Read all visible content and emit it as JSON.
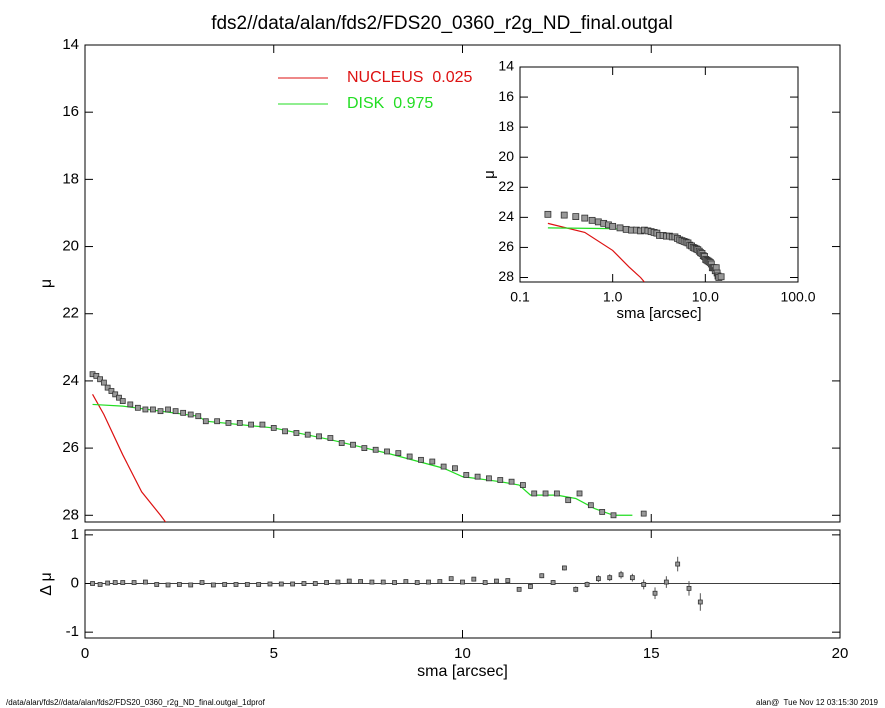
{
  "footer": {
    "left": "/data/alan/fds2//data/alan/fds2/FDS20_0360_r2g_ND_final.outgal_1dprof",
    "right": "alan@  Tue Nov 12 03:15:30 2019"
  },
  "chart_data": [
    {
      "type": "line",
      "title": "fds2//data/alan/fds2/FDS20_0360_r2g_ND_final.outgal",
      "ylabel": "μ",
      "xlim": [
        0,
        20
      ],
      "xticks": [
        0,
        5,
        10,
        15,
        20
      ],
      "ylim": [
        28.2,
        14
      ],
      "yticks": [
        14,
        16,
        18,
        20,
        22,
        24,
        26,
        28
      ],
      "marker_color": "#999999",
      "x": [
        0.2,
        0.3,
        0.4,
        0.5,
        0.6,
        0.7,
        0.8,
        0.9,
        1.0,
        1.2,
        1.4,
        1.6,
        1.8,
        2.0,
        2.2,
        2.4,
        2.6,
        2.8,
        3.0,
        3.2,
        3.5,
        3.8,
        4.1,
        4.4,
        4.7,
        5.0,
        5.3,
        5.6,
        5.9,
        6.2,
        6.5,
        6.8,
        7.1,
        7.4,
        7.7,
        8.0,
        8.3,
        8.6,
        8.9,
        9.2,
        9.5,
        9.8,
        10.1,
        10.4,
        10.7,
        11.0,
        11.3,
        11.6,
        11.9,
        12.2,
        12.5,
        12.8,
        13.1,
        13.4,
        13.7,
        14.0,
        14.8
      ],
      "values": [
        23.8,
        23.85,
        23.95,
        24.05,
        24.2,
        24.3,
        24.4,
        24.5,
        24.6,
        24.7,
        24.8,
        24.85,
        24.85,
        24.9,
        24.85,
        24.9,
        24.95,
        25.0,
        25.05,
        25.2,
        25.2,
        25.25,
        25.25,
        25.3,
        25.3,
        25.4,
        25.5,
        25.55,
        25.6,
        25.65,
        25.7,
        25.85,
        25.9,
        26.0,
        26.05,
        26.1,
        26.15,
        26.25,
        26.35,
        26.4,
        26.55,
        26.6,
        26.8,
        26.85,
        26.9,
        26.95,
        27.0,
        27.1,
        27.35,
        27.35,
        27.35,
        27.55,
        27.35,
        27.7,
        27.9,
        28.0,
        27.95
      ],
      "series": [
        {
          "name": "NUCLEUS  0.025",
          "color": "#dd1111",
          "x": [
            0.2,
            0.5,
            1.0,
            1.5,
            2.0,
            2.2
          ],
          "values": [
            24.4,
            25.0,
            26.2,
            27.3,
            28.0,
            28.3
          ]
        },
        {
          "name": "DISK  0.975",
          "color": "#22dd22",
          "x": [
            0.2,
            1.0,
            2.0,
            3.0,
            3.2,
            5.0,
            6.5,
            8.0,
            9.5,
            10.0,
            11.0,
            11.5,
            11.8,
            12.5,
            13.0,
            13.5,
            14.0,
            14.5
          ],
          "values": [
            24.7,
            24.75,
            24.9,
            25.05,
            25.2,
            25.4,
            25.75,
            26.15,
            26.6,
            26.85,
            27.0,
            27.1,
            27.4,
            27.4,
            27.5,
            27.8,
            28.0,
            28.0
          ]
        }
      ]
    },
    {
      "type": "line",
      "xlabel": "sma [arcsec]",
      "ylabel": "μ",
      "log_x": true,
      "xlim": [
        0.1,
        100
      ],
      "xticks": [
        0.1,
        {
          "value": 1,
          "label": "1.0"
        },
        {
          "value": 10,
          "label": "10.0"
        },
        {
          "value": 100,
          "label": "100.0"
        }
      ],
      "ylim": [
        28.3,
        14
      ],
      "yticks": [
        14,
        16,
        18,
        20,
        22,
        24,
        26,
        28
      ]
    },
    {
      "type": "scatter",
      "xlabel": "sma [arcsec]",
      "ylabel": "Δ μ",
      "xlim": [
        0,
        20
      ],
      "xticks": [
        0,
        5,
        10,
        15,
        20
      ],
      "ylim": [
        -1.12,
        1.1
      ],
      "yticks": [
        -1,
        0,
        1
      ],
      "x": [
        0.2,
        0.4,
        0.6,
        0.8,
        1.0,
        1.3,
        1.6,
        1.9,
        2.2,
        2.5,
        2.8,
        3.1,
        3.4,
        3.7,
        4.0,
        4.3,
        4.6,
        4.9,
        5.2,
        5.5,
        5.8,
        6.1,
        6.4,
        6.7,
        7.0,
        7.3,
        7.6,
        7.9,
        8.2,
        8.5,
        8.8,
        9.1,
        9.4,
        9.7,
        10.0,
        10.3,
        10.6,
        10.9,
        11.2,
        11.5,
        11.8,
        12.1,
        12.4,
        12.7,
        13.0,
        13.3,
        13.6,
        13.9,
        14.2,
        14.5,
        14.8,
        15.1,
        15.4,
        15.7,
        16.0,
        16.3
      ],
      "values": [
        0,
        -0.02,
        0.01,
        0.02,
        0.02,
        0.02,
        0.03,
        -0.02,
        -0.03,
        -0.02,
        -0.03,
        0.02,
        -0.03,
        -0.02,
        -0.02,
        -0.02,
        -0.02,
        -0.01,
        -0.01,
        -0.01,
        0,
        0,
        0.02,
        0.03,
        0.05,
        0.04,
        0.03,
        0.03,
        0.02,
        0.04,
        0.02,
        0.03,
        0.04,
        0.1,
        0.03,
        0.09,
        0.02,
        0.05,
        0.06,
        -0.12,
        -0.06,
        0.16,
        0.02,
        0.32,
        -0.12,
        -0.02,
        0.1,
        0.12,
        0.18,
        0.12,
        -0.02,
        -0.2,
        0.03,
        0.4,
        -0.1,
        -0.38
      ],
      "errors": [
        0.02,
        0.02,
        0.02,
        0.02,
        0.02,
        0.02,
        0.02,
        0.02,
        0.02,
        0.02,
        0.02,
        0.02,
        0.02,
        0.02,
        0.02,
        0.02,
        0.02,
        0.02,
        0.02,
        0.02,
        0.02,
        0.02,
        0.02,
        0.02,
        0.02,
        0.02,
        0.02,
        0.02,
        0.02,
        0.02,
        0.02,
        0.02,
        0.02,
        0.02,
        0.02,
        0.02,
        0.02,
        0.02,
        0.02,
        0.02,
        0.05,
        0.05,
        0.05,
        0.05,
        0.06,
        0.06,
        0.07,
        0.07,
        0.08,
        0.08,
        0.1,
        0.12,
        0.12,
        0.15,
        0.15,
        0.18
      ]
    }
  ]
}
